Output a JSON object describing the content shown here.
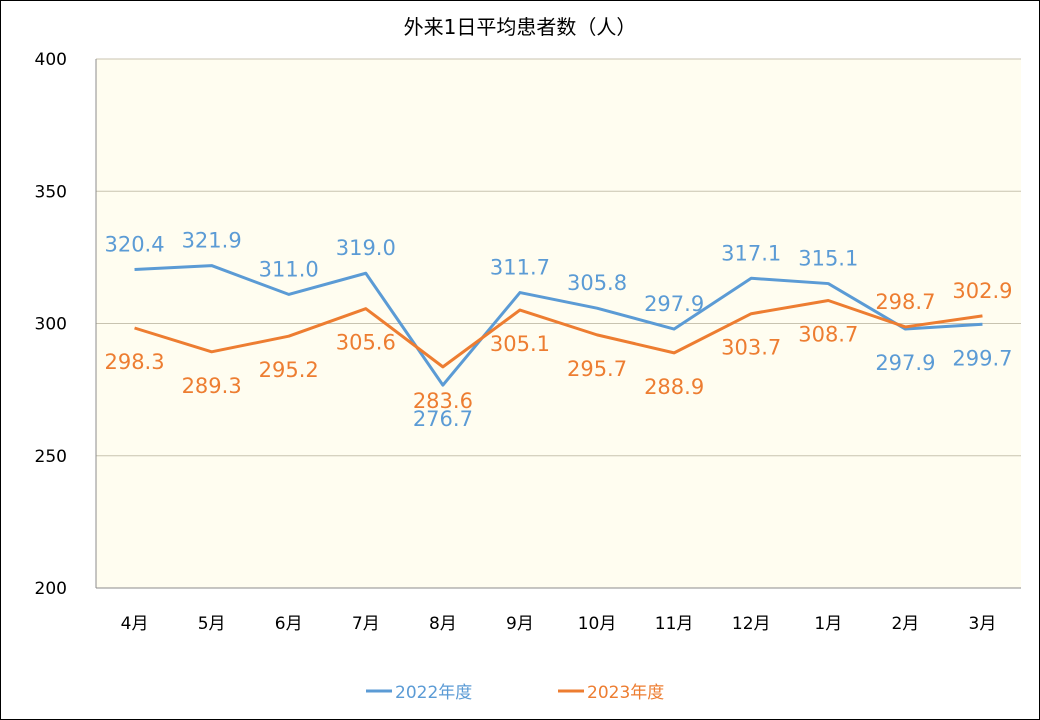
{
  "chart_data": {
    "type": "line",
    "title": "外来1日平均患者数（人）",
    "categories": [
      "4月",
      "5月",
      "6月",
      "7月",
      "8月",
      "9月",
      "10月",
      "11月",
      "12月",
      "1月",
      "2月",
      "3月"
    ],
    "series": [
      {
        "name": "2022年度",
        "color": "#5b9bd5",
        "values": [
          320.4,
          321.9,
          311.0,
          319.0,
          276.7,
          311.7,
          305.8,
          297.9,
          317.1,
          315.1,
          297.9,
          299.7
        ],
        "labels": [
          "320.4",
          "321.9",
          "311.0",
          "319.0",
          "276.7",
          "311.7",
          "305.8",
          "297.9",
          "317.1",
          "315.1",
          "297.9",
          "299.7"
        ],
        "label_positions": [
          "above",
          "above",
          "above",
          "above",
          "below",
          "above",
          "above",
          "above",
          "above",
          "above",
          "below",
          "below"
        ]
      },
      {
        "name": "2023年度",
        "color": "#ed7d31",
        "values": [
          298.3,
          289.3,
          295.2,
          305.6,
          283.6,
          305.1,
          295.7,
          288.9,
          303.7,
          308.7,
          298.7,
          302.9
        ],
        "labels": [
          "298.3",
          "289.3",
          "295.2",
          "305.6",
          "283.6",
          "305.1",
          "295.7",
          "288.9",
          "303.7",
          "308.7",
          "298.7",
          "302.9"
        ],
        "label_positions": [
          "below",
          "below",
          "below",
          "below",
          "below",
          "below",
          "below",
          "below",
          "below",
          "below",
          "above",
          "above"
        ]
      }
    ],
    "y_ticks": [
      "200",
      "250",
      "300",
      "350",
      "400"
    ],
    "ylim": [
      200,
      400
    ],
    "xlabel": "",
    "ylabel": "",
    "grid": true,
    "plot_background": "#fffdf0",
    "gridline_color": "#c8c3b0",
    "legend_position": "bottom"
  }
}
